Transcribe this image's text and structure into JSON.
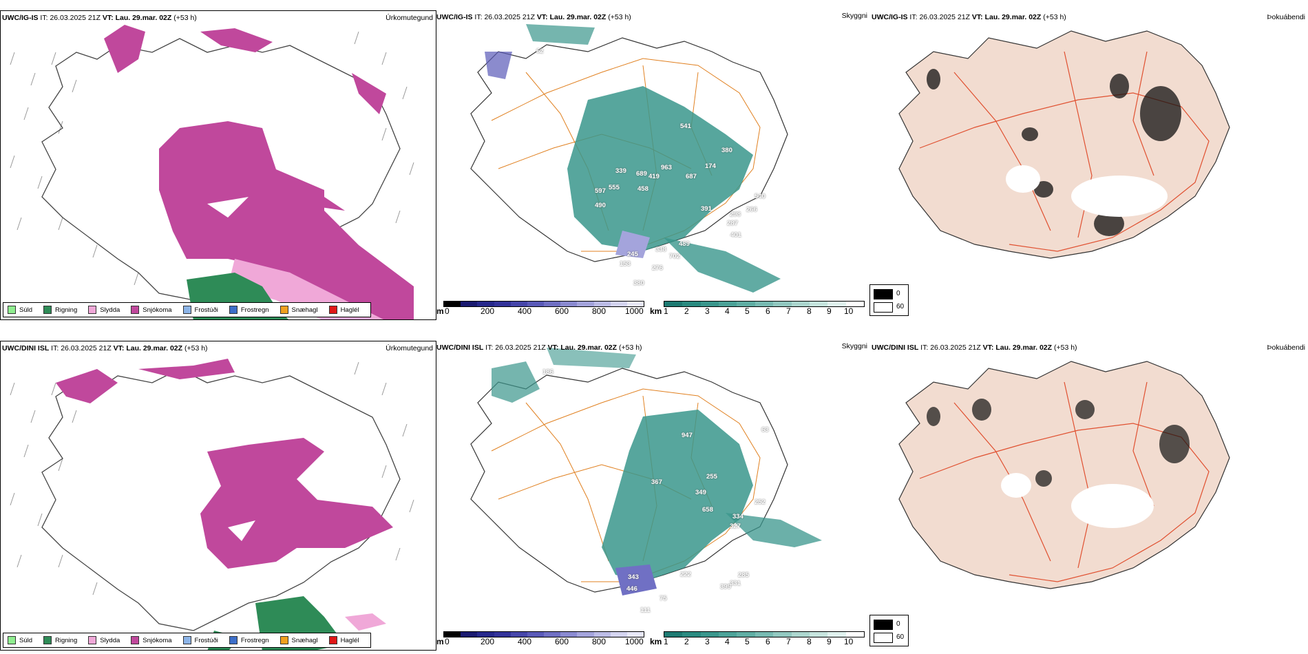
{
  "rows": [
    {
      "model": "UWC/IG-IS",
      "it_label": "IT:",
      "it_value": "26.03.2025 21Z",
      "vt_label": "VT:",
      "vt_value": "Lau. 29.mar. 02Z",
      "lead": "(+53 h)",
      "labels": [
        "62",
        "339",
        "689",
        "963",
        "419",
        "687",
        "597",
        "555",
        "458",
        "490",
        "541",
        "380",
        "174",
        "391",
        "540",
        "298",
        "266",
        "287",
        "401",
        "489",
        "245",
        "338",
        "702",
        "153",
        "276",
        "380"
      ]
    },
    {
      "model": "UWC/DINI ISL",
      "it_label": "IT:",
      "it_value": "26.03.2025 21Z",
      "vt_label": "VT:",
      "vt_value": "Lau. 29.mar. 02Z",
      "lead": "(+53 h)",
      "labels": [
        "186",
        "947",
        "63",
        "367",
        "255",
        "349",
        "658",
        "252",
        "334",
        "327",
        "343",
        "222",
        "285",
        "446",
        "75",
        "399",
        "331",
        "111"
      ]
    }
  ],
  "panel_titles": {
    "precip_type": "Úrkomutegund",
    "clouds": "Skyggni",
    "fog": "Þokuábendi"
  },
  "precip_legend": [
    {
      "label": "Súld",
      "color": "#90ee90"
    },
    {
      "label": "Rigning",
      "color": "#2e8b57"
    },
    {
      "label": "Slydda",
      "color": "#f0a8d8"
    },
    {
      "label": "Snjókoma",
      "color": "#c0489c"
    },
    {
      "label": "Frostúði",
      "color": "#8cb4e8"
    },
    {
      "label": "Frostregn",
      "color": "#3c6ec8"
    },
    {
      "label": "Snæhagl",
      "color": "#f0a020"
    },
    {
      "label": "Haglél",
      "color": "#e01818"
    }
  ],
  "elev_bar": {
    "unit": "m",
    "ticks": [
      "0",
      "200",
      "400",
      "600",
      "800",
      "1000"
    ],
    "colors": [
      "#000000",
      "#1a1a70",
      "#26288c",
      "#33339a",
      "#4646aa",
      "#5a5ab8",
      "#7070c4",
      "#8a8ad0",
      "#a4a4dc",
      "#bcbce6",
      "#d4d4f0",
      "#e8e8f8"
    ]
  },
  "km_bar": {
    "unit": "km",
    "ticks": [
      "1",
      "2",
      "3",
      "4",
      "5",
      "6",
      "7",
      "8",
      "9",
      "10"
    ],
    "colors": [
      "#1e7a72",
      "#2a8a80",
      "#3a968c",
      "#4ca298",
      "#60aea4",
      "#78bab2",
      "#92c8c0",
      "#acd6ce",
      "#c6e4de",
      "#e0f2ee",
      "#ffffff"
    ]
  },
  "fog_legend": [
    {
      "label": "0",
      "color": "#000000"
    },
    {
      "label": "60",
      "color": "#ffffff"
    }
  ]
}
